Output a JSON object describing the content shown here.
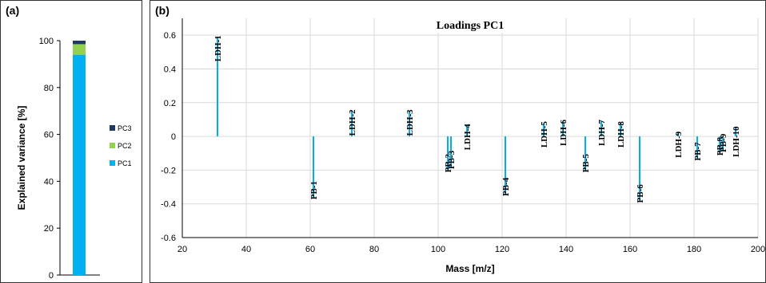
{
  "colors": {
    "pc1": "#00B0F0",
    "pc2": "#92D050",
    "pc3": "#1F3864",
    "grid": "#d9d9d9",
    "axis": "#000000"
  },
  "panel_a": {
    "label": "(a)"
  },
  "panel_b": {
    "label": "(b)"
  },
  "chart_data": [
    {
      "type": "bar",
      "stacked": true,
      "ylabel": "Explained variance [%]",
      "ylim": [
        0,
        100
      ],
      "yticks": [
        0,
        20,
        40,
        60,
        80,
        100
      ],
      "grid": false,
      "legend_position": "right",
      "series": [
        {
          "name": "PC1",
          "value": 94
        },
        {
          "name": "PC2",
          "value": 4.5
        },
        {
          "name": "PC3",
          "value": 1.5
        }
      ],
      "legend_order": [
        "PC3",
        "PC2",
        "PC1"
      ]
    },
    {
      "type": "bar",
      "title": "Loadings PC1",
      "xlabel": "Mass [m/z]",
      "xlim": [
        20,
        200
      ],
      "ylim": [
        -0.6,
        0.7
      ],
      "xticks": [
        20,
        40,
        60,
        80,
        100,
        120,
        140,
        160,
        180,
        200
      ],
      "yticks": [
        0.6,
        0.4,
        0.2,
        0,
        -0.2,
        -0.4,
        -0.6
      ],
      "ytick_labels": [
        "0.6",
        "0.4",
        "0.2",
        "0",
        "-0.2",
        "-0.4",
        "-0.6"
      ],
      "grid": true,
      "points": [
        {
          "label": "LDH-1",
          "x": 31,
          "y": 0.59
        },
        {
          "label": "PB-1",
          "x": 61,
          "y": -0.36
        },
        {
          "label": "LDH-2",
          "x": 73,
          "y": 0.15
        },
        {
          "label": "LDH-3",
          "x": 91,
          "y": 0.15
        },
        {
          "label": "PB-2",
          "x": 103,
          "y": -0.2
        },
        {
          "label": "PB-3",
          "x": 104,
          "y": -0.18
        },
        {
          "label": "LDH-4",
          "x": 109,
          "y": 0.065
        },
        {
          "label": "PB-4",
          "x": 121,
          "y": -0.34
        },
        {
          "label": "LDH-5",
          "x": 133,
          "y": 0.08
        },
        {
          "label": "LDH-6",
          "x": 139,
          "y": 0.09
        },
        {
          "label": "PB-5",
          "x": 146,
          "y": -0.2
        },
        {
          "label": "LDH-7",
          "x": 151,
          "y": 0.09
        },
        {
          "label": "LDH-8",
          "x": 157,
          "y": 0.08
        },
        {
          "label": "PB-6",
          "x": 163,
          "y": -0.38
        },
        {
          "label": "LDH-9",
          "x": 175,
          "y": 0.02
        },
        {
          "label": "PB-7",
          "x": 181,
          "y": -0.13
        },
        {
          "label": "PB-8",
          "x": 188,
          "y": -0.1
        },
        {
          "label": "PB-9",
          "x": 189,
          "y": -0.08
        },
        {
          "label": "LDH-10",
          "x": 193,
          "y": 0.05
        }
      ]
    }
  ]
}
